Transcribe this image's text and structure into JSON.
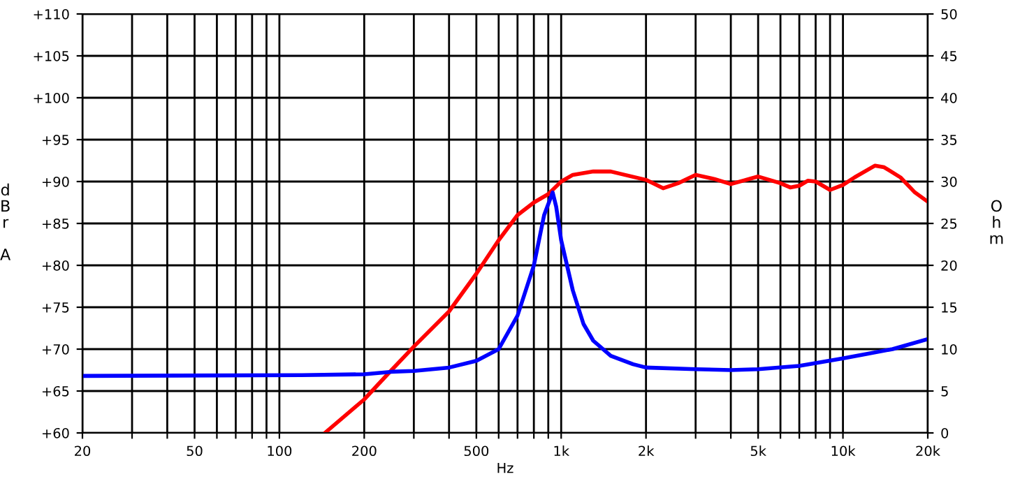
{
  "chart_data": {
    "type": "line",
    "xlabel": "Hz",
    "ylabel": "dBr A",
    "y2label": "Ohm",
    "log": "x",
    "grid": true,
    "legend": false,
    "marker": "none",
    "line_style": "solid",
    "xlim": [
      20,
      20000
    ],
    "xticks": [
      {
        "value": 20,
        "label": "20"
      },
      {
        "value": 30,
        "label": null
      },
      {
        "value": 40,
        "label": null
      },
      {
        "value": 50,
        "label": "50"
      },
      {
        "value": 60,
        "label": null
      },
      {
        "value": 70,
        "label": null
      },
      {
        "value": 80,
        "label": null
      },
      {
        "value": 90,
        "label": null
      },
      {
        "value": 100,
        "label": "100"
      },
      {
        "value": 200,
        "label": "200"
      },
      {
        "value": 300,
        "label": null
      },
      {
        "value": 400,
        "label": null
      },
      {
        "value": 500,
        "label": "500"
      },
      {
        "value": 600,
        "label": null
      },
      {
        "value": 700,
        "label": null
      },
      {
        "value": 800,
        "label": null
      },
      {
        "value": 900,
        "label": null
      },
      {
        "value": 1000,
        "label": "1k"
      },
      {
        "value": 2000,
        "label": "2k"
      },
      {
        "value": 3000,
        "label": null
      },
      {
        "value": 4000,
        "label": null
      },
      {
        "value": 5000,
        "label": "5k"
      },
      {
        "value": 6000,
        "label": null
      },
      {
        "value": 7000,
        "label": null
      },
      {
        "value": 8000,
        "label": null
      },
      {
        "value": 9000,
        "label": null
      },
      {
        "value": 10000,
        "label": "10k"
      },
      {
        "value": 20000,
        "label": "20k"
      }
    ],
    "ylim": [
      60,
      110
    ],
    "yticks": [
      {
        "value": 60,
        "label": "+60"
      },
      {
        "value": 65,
        "label": "+65"
      },
      {
        "value": 70,
        "label": "+70"
      },
      {
        "value": 75,
        "label": "+75"
      },
      {
        "value": 80,
        "label": "+80"
      },
      {
        "value": 85,
        "label": "+85"
      },
      {
        "value": 90,
        "label": "+90"
      },
      {
        "value": 95,
        "label": "+95"
      },
      {
        "value": 100,
        "label": "+100"
      },
      {
        "value": 105,
        "label": "+105"
      },
      {
        "value": 110,
        "label": "+110"
      }
    ],
    "y2lim": [
      0,
      50
    ],
    "y2ticks": [
      0,
      5,
      10,
      15,
      20,
      25,
      30,
      35,
      40,
      45,
      50
    ],
    "series": [
      {
        "color": "#ff0000",
        "x": [
          145,
          200,
          250,
          300,
          400,
          500,
          600,
          700,
          800,
          900,
          1000,
          1100,
          1300,
          1500,
          2000,
          2300,
          2600,
          3000,
          3500,
          4000,
          5000,
          6000,
          6500,
          7000,
          7500,
          8000,
          9000,
          10000,
          11000,
          13000,
          14000,
          16000,
          18000,
          20000
        ],
        "values": [
          60,
          64,
          67.5,
          70.3,
          74.5,
          79,
          83,
          86,
          87.5,
          88.5,
          90,
          90.8,
          91.2,
          91.2,
          90.2,
          89.2,
          89.8,
          90.8,
          90.3,
          89.7,
          90.6,
          89.8,
          89.3,
          89.5,
          90.1,
          90,
          89,
          89.6,
          90.5,
          91.9,
          91.7,
          90.5,
          88.7,
          87.6
        ]
      },
      {
        "color": "#0000ff",
        "axis": "y2",
        "x": [
          20,
          120,
          200,
          250,
          300,
          400,
          500,
          600,
          700,
          800,
          870,
          933,
          960,
          1000,
          1100,
          1200,
          1300,
          1500,
          1800,
          2000,
          3000,
          4000,
          5000,
          7000,
          10000,
          15000,
          20000
        ],
        "values": [
          6.8,
          6.9,
          7.0,
          7.3,
          7.4,
          7.8,
          8.6,
          10,
          14,
          20,
          26,
          28.7,
          27,
          23,
          17,
          13,
          11,
          9.2,
          8.2,
          7.8,
          7.6,
          7.5,
          7.6,
          8,
          8.9,
          10,
          11.2
        ]
      }
    ]
  }
}
